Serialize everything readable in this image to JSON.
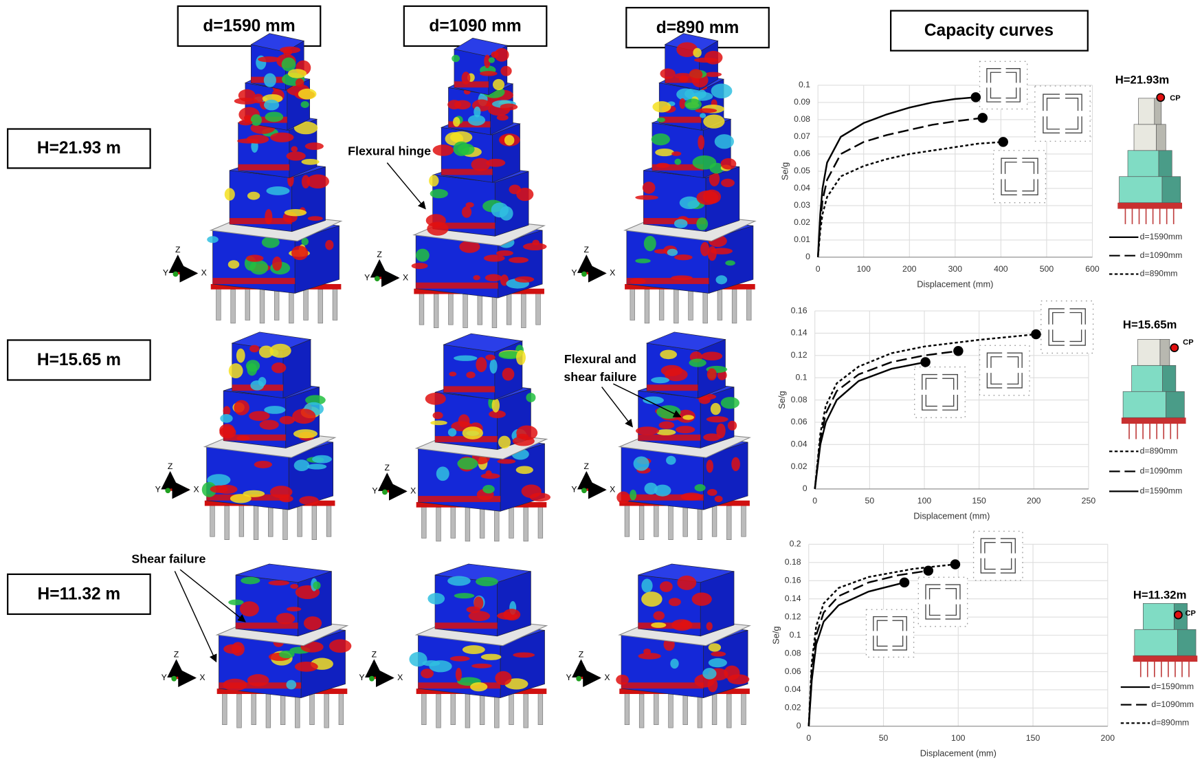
{
  "headers": {
    "columns": [
      "d=1590 mm",
      "d=1090 mm",
      "d=890 mm"
    ],
    "rows": [
      "H=21.93 m",
      "H=15.65 m",
      "H=11.32 m"
    ],
    "curves_title": "Capacity curves"
  },
  "annotations": {
    "flexural_hinge": "Flexural hinge",
    "flexural_shear": [
      "Flexural and",
      "shear failure"
    ],
    "shear_failure": "Shear failure"
  },
  "axis_triad": [
    "Z",
    "Y",
    "X"
  ],
  "chart_data": [
    {
      "type": "line",
      "x_label": "Displacement (mm)",
      "y_label": "Se/g",
      "annotations": [
        "H=21.93m",
        "CP"
      ],
      "xlim": [
        0,
        600
      ],
      "xticks": [
        0,
        100,
        200,
        300,
        400,
        500,
        600
      ],
      "ylim": [
        0,
        0.1
      ],
      "yticks": [
        0,
        0.01,
        0.02,
        0.03,
        0.04,
        0.05,
        0.06,
        0.07,
        0.08,
        0.09,
        0.1
      ],
      "grid": true,
      "series": [
        {
          "name": "d=1590mm",
          "color": "#000000",
          "dash": "solid",
          "x": [
            0,
            5,
            10,
            20,
            50,
            100,
            150,
            200,
            250,
            300,
            345
          ],
          "values": [
            0,
            0.025,
            0.04,
            0.055,
            0.07,
            0.078,
            0.083,
            0.087,
            0.09,
            0.092,
            0.093
          ]
        },
        {
          "name": "d=1090mm",
          "color": "#000000",
          "dash": "dashed",
          "x": [
            0,
            5,
            10,
            20,
            50,
            100,
            150,
            200,
            250,
            300,
            360
          ],
          "values": [
            0,
            0.02,
            0.033,
            0.045,
            0.06,
            0.067,
            0.071,
            0.074,
            0.077,
            0.079,
            0.081
          ]
        },
        {
          "name": "d=890mm",
          "color": "#000000",
          "dash": "dotted",
          "x": [
            0,
            5,
            10,
            20,
            50,
            100,
            150,
            200,
            250,
            300,
            350,
            405
          ],
          "values": [
            0,
            0.015,
            0.025,
            0.035,
            0.047,
            0.053,
            0.057,
            0.06,
            0.062,
            0.064,
            0.066,
            0.067
          ]
        }
      ]
    },
    {
      "type": "line",
      "x_label": "Displacement (mm)",
      "y_label": "Se/g",
      "annotations": [
        "H=15.65m",
        "CP"
      ],
      "xlim": [
        0,
        250
      ],
      "xticks": [
        0,
        50,
        100,
        150,
        200,
        250
      ],
      "ylim": [
        0,
        0.16
      ],
      "yticks": [
        0,
        0.02,
        0.04,
        0.06,
        0.08,
        0.1,
        0.12,
        0.14,
        0.16
      ],
      "grid": true,
      "series": [
        {
          "name": "d=890mm",
          "color": "#000000",
          "dash": "dotted",
          "x": [
            0,
            5,
            10,
            20,
            40,
            70,
            100,
            150,
            202
          ],
          "values": [
            0,
            0.05,
            0.075,
            0.095,
            0.11,
            0.122,
            0.128,
            0.134,
            0.139
          ]
        },
        {
          "name": "d=1090mm",
          "color": "#000000",
          "dash": "dashed",
          "x": [
            0,
            5,
            10,
            20,
            40,
            70,
            100,
            131
          ],
          "values": [
            0,
            0.045,
            0.068,
            0.088,
            0.103,
            0.114,
            0.12,
            0.124
          ]
        },
        {
          "name": "d=1590mm",
          "color": "#000000",
          "dash": "solid",
          "x": [
            0,
            5,
            10,
            20,
            40,
            70,
            101
          ],
          "values": [
            0,
            0.04,
            0.06,
            0.08,
            0.097,
            0.108,
            0.114
          ]
        }
      ]
    },
    {
      "type": "line",
      "x_label": "Displacement (mm)",
      "y_label": "Se/g",
      "annotations": [
        "H=11.32m",
        "CP"
      ],
      "xlim": [
        0,
        200
      ],
      "xticks": [
        0,
        50,
        100,
        150,
        200
      ],
      "ylim": [
        0,
        0.2
      ],
      "yticks": [
        0,
        0.02,
        0.04,
        0.06,
        0.08,
        0.1,
        0.12,
        0.14,
        0.16,
        0.18,
        0.2
      ],
      "grid": true,
      "series": [
        {
          "name": "d=1590mm",
          "color": "#000000",
          "dash": "solid",
          "x": [
            0,
            2,
            5,
            10,
            20,
            40,
            64
          ],
          "values": [
            0,
            0.05,
            0.09,
            0.115,
            0.133,
            0.148,
            0.158
          ]
        },
        {
          "name": "d=1090mm",
          "color": "#000000",
          "dash": "dashed",
          "x": [
            0,
            2,
            5,
            10,
            20,
            40,
            60,
            80
          ],
          "values": [
            0,
            0.06,
            0.1,
            0.125,
            0.143,
            0.158,
            0.166,
            0.171
          ]
        },
        {
          "name": "d=890mm",
          "color": "#000000",
          "dash": "dotted",
          "x": [
            0,
            2,
            5,
            10,
            20,
            40,
            70,
            98
          ],
          "values": [
            0,
            0.07,
            0.11,
            0.135,
            0.152,
            0.164,
            0.173,
            0.178
          ]
        }
      ]
    }
  ]
}
